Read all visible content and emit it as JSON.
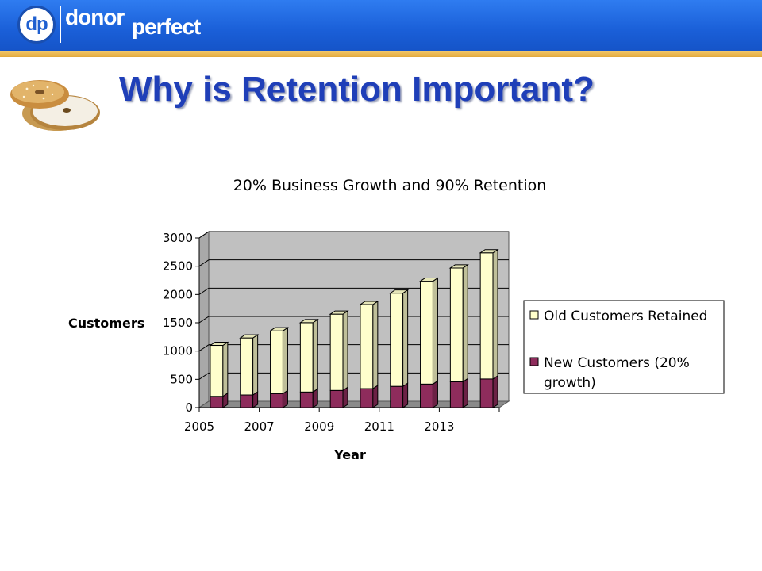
{
  "header": {
    "logo_mark": "dp",
    "logo_word1": "donor",
    "logo_word2": "perfect",
    "colors": {
      "bar": "#1a5fd8",
      "stripe": "#e2a83a"
    }
  },
  "slide": {
    "title": "Why is Retention Important?",
    "image_icon": "bagel-icon"
  },
  "chart_data": {
    "type": "bar",
    "stacked": true,
    "three_d": true,
    "title": "20% Business Growth and 90% Retention",
    "xlabel": "Year",
    "ylabel": "Customers",
    "ylim": [
      0,
      3000
    ],
    "yticks": [
      0,
      500,
      1000,
      1500,
      2000,
      2500,
      3000
    ],
    "categories": [
      2005,
      2006,
      2007,
      2008,
      2009,
      2010,
      2011,
      2012,
      2013,
      2014
    ],
    "xtick_labels": [
      "2005",
      "2007",
      "2009",
      "2011",
      "2013"
    ],
    "grid": true,
    "legend_position": "right",
    "series": [
      {
        "name": "New Customers (20% growth)",
        "color": "#8e2c5c",
        "values": [
          200,
          224,
          248,
          276,
          304,
          336,
          376,
          416,
          456,
          506
        ]
      },
      {
        "name": "Old Customers Retained",
        "color": "#ffffcc",
        "values": [
          900,
          1008,
          1109,
          1226,
          1348,
          1487,
          1648,
          1819,
          2012,
          2231
        ]
      }
    ],
    "legend": {
      "old_label": "Old Customers Retained",
      "new_label_line1": "New Customers (20%",
      "new_label_line2": "growth)"
    }
  }
}
